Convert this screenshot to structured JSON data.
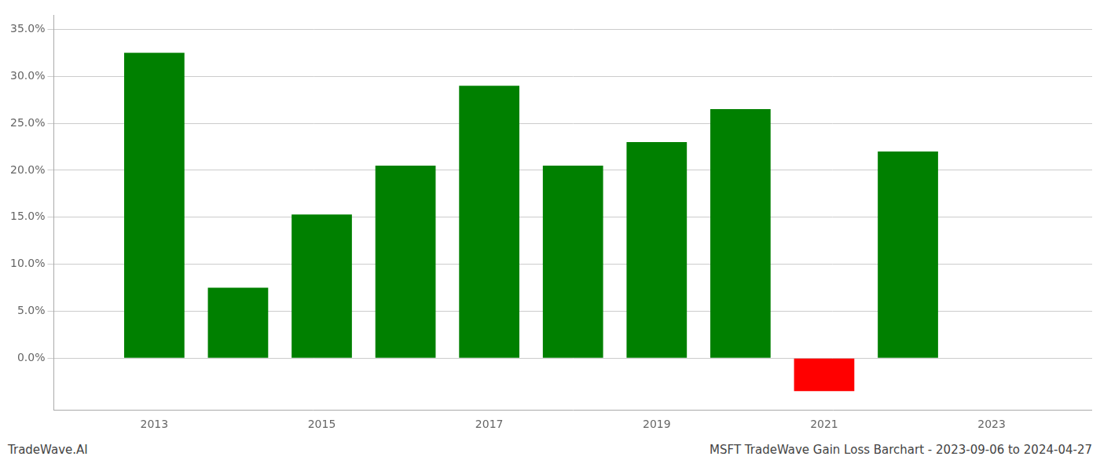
{
  "chart_data": {
    "type": "bar",
    "title": "MSFT TradeWave Gain Loss Barchart - 2023-09-06 to 2024-04-27",
    "annotations": [
      {
        "text": "TradeWave.AI"
      }
    ],
    "x": [
      2013,
      2014,
      2015,
      2016,
      2017,
      2018,
      2019,
      2020,
      2021,
      2022
    ],
    "values": [
      0.325,
      0.075,
      0.153,
      0.205,
      0.29,
      0.205,
      0.23,
      0.265,
      -0.035,
      0.22
    ],
    "colors": [
      "#008000",
      "#008000",
      "#008000",
      "#008000",
      "#008000",
      "#008000",
      "#008000",
      "#008000",
      "#ff0000",
      "#008000"
    ],
    "xlim": [
      2011.8,
      2024.2
    ],
    "xticks": [
      2013,
      2015,
      2017,
      2019,
      2021,
      2023
    ],
    "ylim": [
      -0.055,
      0.365
    ],
    "yticks": [
      {
        "value": 0.0,
        "label": "0.0%"
      },
      {
        "value": 0.05,
        "label": "5.0%"
      },
      {
        "value": 0.1,
        "label": "10.0%"
      },
      {
        "value": 0.15,
        "label": "15.0%"
      },
      {
        "value": 0.2,
        "label": "20.0%"
      },
      {
        "value": 0.25,
        "label": "25.0%"
      },
      {
        "value": 0.3,
        "label": "30.0%"
      },
      {
        "value": 0.35,
        "label": "35.0%"
      }
    ],
    "grid": true
  }
}
